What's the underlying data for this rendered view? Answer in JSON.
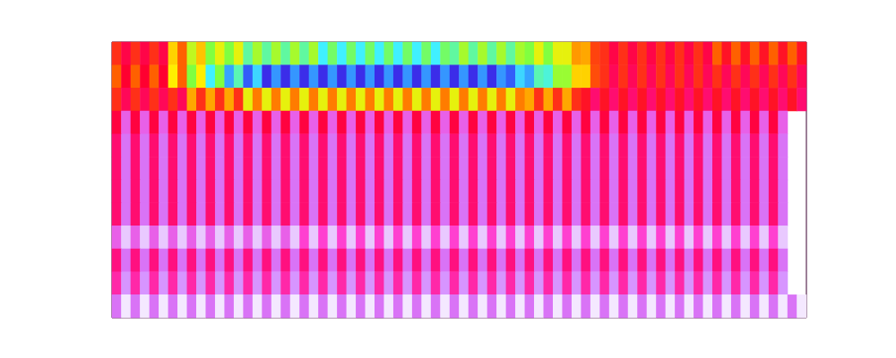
{
  "chart_data": {
    "type": "heatmap",
    "tick_labels": false,
    "grid": false,
    "zlim": [
      0,
      1
    ],
    "values": [
      [
        0.55,
        0.63,
        0.55,
        0.63,
        0.55,
        0.63,
        0.42,
        0.5,
        0.35,
        0.43,
        0.3,
        0.38,
        0.3,
        0.38,
        0.25,
        0.33,
        0.25,
        0.33,
        0.25,
        0.33,
        0.25,
        0.33,
        0.2,
        0.28,
        0.2,
        0.28,
        0.2,
        0.28,
        0.2,
        0.28,
        0.2,
        0.28,
        0.2,
        0.28,
        0.2,
        0.28,
        0.25,
        0.33,
        0.25,
        0.33,
        0.25,
        0.33,
        0.25,
        0.33,
        0.3,
        0.38,
        0.3,
        0.38,
        0.38,
        0.46,
        0.45,
        0.53,
        0.55,
        0.63,
        0.55,
        0.63,
        0.55,
        0.63,
        0.55,
        0.63,
        0.55,
        0.63,
        0.55,
        0.63,
        0.5,
        0.58,
        0.5,
        0.58,
        0.5,
        0.58,
        0.5,
        0.58,
        0.5,
        0.58
      ],
      [
        0.5,
        0.6,
        0.5,
        0.6,
        0.5,
        0.6,
        0.4,
        0.5,
        0.3,
        0.4,
        0.2,
        0.3,
        0.14,
        0.24,
        0.08,
        0.18,
        0.03,
        0.13,
        0.03,
        0.13,
        0.03,
        0.13,
        0.03,
        0.13,
        0.03,
        0.13,
        0.03,
        0.13,
        0.03,
        0.13,
        0.03,
        0.13,
        0.03,
        0.13,
        0.03,
        0.13,
        0.03,
        0.13,
        0.03,
        0.13,
        0.03,
        0.13,
        0.08,
        0.18,
        0.14,
        0.24,
        0.22,
        0.32,
        0.32,
        0.42,
        0.42,
        0.52,
        0.55,
        0.65,
        0.55,
        0.65,
        0.55,
        0.65,
        0.55,
        0.65,
        0.55,
        0.65,
        0.55,
        0.65,
        0.55,
        0.65,
        0.55,
        0.65,
        0.55,
        0.65,
        0.55,
        0.65,
        0.55,
        0.65
      ],
      [
        0.55,
        0.65,
        0.55,
        0.65,
        0.55,
        0.65,
        0.55,
        0.65,
        0.45,
        0.55,
        0.45,
        0.55,
        0.45,
        0.55,
        0.38,
        0.48,
        0.38,
        0.48,
        0.38,
        0.48,
        0.38,
        0.48,
        0.38,
        0.48,
        0.38,
        0.48,
        0.38,
        0.48,
        0.38,
        0.48,
        0.38,
        0.48,
        0.38,
        0.48,
        0.38,
        0.48,
        0.38,
        0.48,
        0.38,
        0.48,
        0.38,
        0.48,
        0.38,
        0.48,
        0.45,
        0.55,
        0.45,
        0.55,
        0.45,
        0.55,
        0.58,
        0.68,
        0.58,
        0.68,
        0.58,
        0.68,
        0.58,
        0.68,
        0.58,
        0.68,
        0.58,
        0.68,
        0.58,
        0.68,
        0.58,
        0.68,
        0.58,
        0.68,
        0.58,
        0.68,
        0.58,
        0.68,
        0.58,
        0.68
      ],
      [
        0.62,
        0.85,
        0.62,
        0.85,
        0.62,
        0.85,
        0.62,
        0.85,
        0.62,
        0.85,
        0.62,
        0.85,
        0.62,
        0.85,
        0.62,
        0.85,
        0.62,
        0.85,
        0.62,
        0.85,
        0.62,
        0.85,
        0.62,
        0.85,
        0.62,
        0.85,
        0.62,
        0.85,
        0.62,
        0.85,
        0.62,
        0.85,
        0.62,
        0.85,
        0.62,
        0.85,
        0.62,
        0.85,
        0.62,
        0.85,
        0.62,
        0.85,
        0.62,
        0.85,
        0.62,
        0.85,
        0.62,
        0.85,
        0.62,
        0.85,
        0.62,
        0.85,
        0.62,
        0.85,
        0.62,
        0.85,
        0.62,
        0.85,
        0.62,
        0.85,
        0.62,
        0.85,
        0.62,
        0.85,
        0.62,
        0.85,
        0.62,
        0.85,
        0.62,
        0.85,
        0.62,
        0.85
      ],
      [
        0.68,
        0.88,
        0.68,
        0.88,
        0.68,
        0.88,
        0.68,
        0.88,
        0.68,
        0.88,
        0.68,
        0.88,
        0.68,
        0.88,
        0.68,
        0.88,
        0.68,
        0.88,
        0.68,
        0.88,
        0.68,
        0.88,
        0.68,
        0.88,
        0.68,
        0.88,
        0.68,
        0.88,
        0.68,
        0.88,
        0.68,
        0.88,
        0.68,
        0.88,
        0.68,
        0.88,
        0.68,
        0.88,
        0.68,
        0.88,
        0.68,
        0.88,
        0.68,
        0.88,
        0.68,
        0.88,
        0.68,
        0.88,
        0.68,
        0.88,
        0.68,
        0.88,
        0.68,
        0.88,
        0.68,
        0.88,
        0.68,
        0.88,
        0.68,
        0.88,
        0.68,
        0.88,
        0.68,
        0.88,
        0.68,
        0.88,
        0.68,
        0.88,
        0.68,
        0.88,
        0.68,
        0.88
      ],
      [
        0.68,
        0.88,
        0.68,
        0.88,
        0.68,
        0.88,
        0.68,
        0.88,
        0.68,
        0.88,
        0.68,
        0.88,
        0.68,
        0.88,
        0.68,
        0.88,
        0.68,
        0.88,
        0.68,
        0.88,
        0.68,
        0.88,
        0.68,
        0.88,
        0.68,
        0.88,
        0.68,
        0.88,
        0.68,
        0.88,
        0.68,
        0.88,
        0.68,
        0.88,
        0.68,
        0.88,
        0.68,
        0.88,
        0.68,
        0.88,
        0.68,
        0.88,
        0.68,
        0.88,
        0.68,
        0.88,
        0.68,
        0.88,
        0.68,
        0.88,
        0.68,
        0.88,
        0.68,
        0.88,
        0.68,
        0.88,
        0.68,
        0.88,
        0.68,
        0.88,
        0.68,
        0.88,
        0.68,
        0.88,
        0.68,
        0.88,
        0.68,
        0.88,
        0.68,
        0.88,
        0.68,
        0.88
      ],
      [
        0.68,
        0.88,
        0.68,
        0.88,
        0.68,
        0.88,
        0.68,
        0.88,
        0.68,
        0.88,
        0.68,
        0.88,
        0.68,
        0.88,
        0.68,
        0.88,
        0.68,
        0.88,
        0.68,
        0.88,
        0.68,
        0.88,
        0.68,
        0.88,
        0.68,
        0.88,
        0.68,
        0.88,
        0.68,
        0.88,
        0.68,
        0.88,
        0.68,
        0.88,
        0.68,
        0.88,
        0.68,
        0.88,
        0.68,
        0.88,
        0.68,
        0.88,
        0.68,
        0.88,
        0.68,
        0.88,
        0.68,
        0.88,
        0.68,
        0.88,
        0.68,
        0.88,
        0.68,
        0.88,
        0.68,
        0.88,
        0.68,
        0.88,
        0.68,
        0.88,
        0.68,
        0.88,
        0.68,
        0.88,
        0.68,
        0.88,
        0.68,
        0.88,
        0.68,
        0.88,
        0.68,
        0.88
      ],
      [
        0.68,
        0.88,
        0.68,
        0.88,
        0.68,
        0.88,
        0.68,
        0.88,
        0.68,
        0.88,
        0.68,
        0.88,
        0.68,
        0.88,
        0.68,
        0.88,
        0.68,
        0.88,
        0.68,
        0.88,
        0.68,
        0.88,
        0.68,
        0.88,
        0.68,
        0.88,
        0.68,
        0.88,
        0.68,
        0.88,
        0.68,
        0.88,
        0.68,
        0.88,
        0.68,
        0.88,
        0.68,
        0.88,
        0.68,
        0.88,
        0.68,
        0.88,
        0.68,
        0.88,
        0.68,
        0.88,
        0.68,
        0.88,
        0.68,
        0.88,
        0.68,
        0.88,
        0.68,
        0.88,
        0.68,
        0.88,
        0.68,
        0.88,
        0.68,
        0.88,
        0.68,
        0.88,
        0.68,
        0.88,
        0.68,
        0.88,
        0.68,
        0.88,
        0.68,
        0.88,
        0.68,
        0.88
      ],
      [
        0.85,
        0.97,
        0.85,
        0.97,
        0.85,
        0.97,
        0.85,
        0.97,
        0.85,
        0.97,
        0.85,
        0.97,
        0.85,
        0.97,
        0.85,
        0.97,
        0.85,
        0.97,
        0.85,
        0.97,
        0.8,
        0.97,
        0.8,
        0.97,
        0.8,
        0.97,
        0.8,
        0.97,
        0.8,
        0.97,
        0.8,
        0.97,
        0.8,
        0.97,
        0.8,
        0.97,
        0.8,
        0.97,
        0.8,
        0.97,
        0.8,
        0.97,
        0.8,
        0.97,
        0.8,
        0.97,
        0.8,
        0.97,
        0.8,
        0.97,
        0.8,
        0.97,
        0.8,
        0.97,
        0.8,
        0.97,
        0.8,
        0.97,
        0.8,
        0.97,
        0.8,
        0.97,
        0.8,
        0.97,
        0.8,
        0.97,
        0.8,
        0.97,
        0.8,
        0.97,
        0.8,
        0.97
      ],
      [
        0.7,
        0.88,
        0.7,
        0.88,
        0.7,
        0.88,
        0.7,
        0.88,
        0.7,
        0.88,
        0.7,
        0.88,
        0.7,
        0.88,
        0.7,
        0.88,
        0.7,
        0.88,
        0.7,
        0.88,
        0.7,
        0.88,
        0.7,
        0.88,
        0.7,
        0.88,
        0.7,
        0.88,
        0.7,
        0.88,
        0.7,
        0.88,
        0.7,
        0.88,
        0.7,
        0.88,
        0.7,
        0.88,
        0.7,
        0.88,
        0.7,
        0.88,
        0.7,
        0.88,
        0.7,
        0.88,
        0.7,
        0.88,
        0.7,
        0.88,
        0.7,
        0.88,
        0.7,
        0.88,
        0.7,
        0.88,
        0.7,
        0.88,
        0.7,
        0.88,
        0.7,
        0.88,
        0.7,
        0.88,
        0.7,
        0.88,
        0.7,
        0.88,
        0.7,
        0.88,
        0.7,
        0.88
      ],
      [
        0.75,
        0.92,
        0.75,
        0.92,
        0.75,
        0.92,
        0.75,
        0.92,
        0.75,
        0.92,
        0.75,
        0.92,
        0.75,
        0.92,
        0.75,
        0.92,
        0.75,
        0.92,
        0.75,
        0.92,
        0.75,
        0.92,
        0.75,
        0.92,
        0.75,
        0.92,
        0.75,
        0.92,
        0.75,
        0.92,
        0.75,
        0.92,
        0.75,
        0.92,
        0.75,
        0.92,
        0.75,
        0.92,
        0.75,
        0.92,
        0.75,
        0.92,
        0.75,
        0.92,
        0.75,
        0.92,
        0.75,
        0.92,
        0.75,
        0.92,
        0.75,
        0.92,
        0.75,
        0.92,
        0.75,
        0.92,
        0.75,
        0.92,
        0.75,
        0.92,
        0.75,
        0.92,
        0.75,
        0.92,
        0.75,
        0.92,
        0.75,
        0.92,
        0.75,
        0.92,
        0.75,
        0.92
      ],
      [
        0.88,
        1,
        0.88,
        1,
        0.88,
        1,
        0.88,
        1,
        0.88,
        1,
        0.88,
        1,
        0.88,
        1,
        0.88,
        1,
        0.88,
        1,
        0.88,
        1,
        0.88,
        1,
        0.88,
        1,
        0.88,
        1,
        0.88,
        1,
        0.88,
        1,
        0.88,
        1,
        0.88,
        1,
        0.88,
        1,
        0.88,
        1,
        0.88,
        1,
        0.88,
        1,
        0.88,
        1,
        0.88,
        1,
        0.88,
        1,
        0.88,
        1,
        0.88,
        1,
        0.88,
        1,
        0.88,
        1,
        0.88,
        1,
        0.88,
        1,
        0.88,
        1,
        0.88,
        1,
        0.88,
        1,
        0.88,
        1,
        0.88,
        1,
        0.88,
        1,
        0.88,
        1
      ]
    ]
  }
}
